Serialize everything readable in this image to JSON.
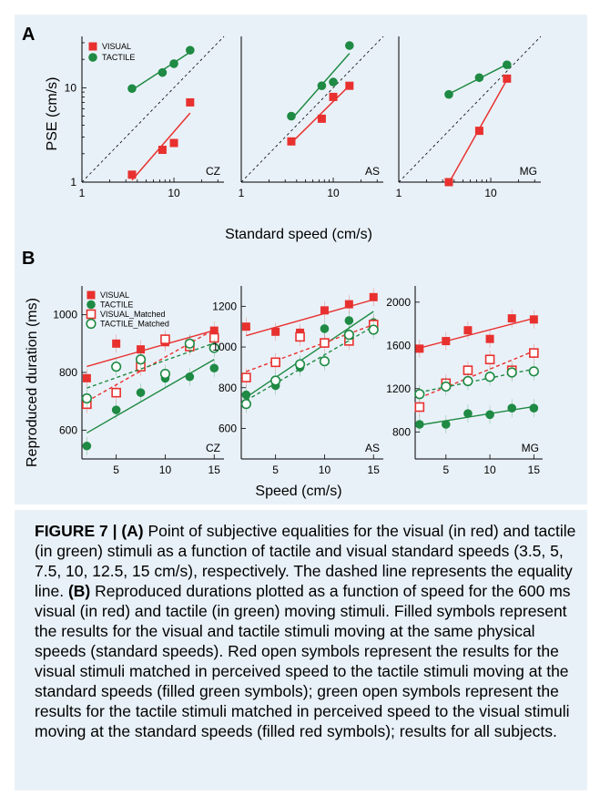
{
  "colors": {
    "visual": "#e8312f",
    "tactile": "#1e8a43",
    "background": "#e9f1f8"
  },
  "panel_a": {
    "letter": "A",
    "ylabel": "PSE (cm/s)",
    "xlabel": "Standard speed (cm/s)",
    "legend": [
      "VISUAL",
      "TACTILE"
    ],
    "x_ticks": [
      "1",
      "10"
    ],
    "y_ticks": [
      "1",
      "10"
    ]
  },
  "panel_b": {
    "letter": "B",
    "ylabel": "Reproduced duration (ms)",
    "xlabel": "Speed (cm/s)",
    "legend": [
      "VISUAL",
      "TACTILE",
      "VISUAL_Matched",
      "TACTILE_Matched"
    ],
    "x_ticks": [
      "5",
      "10",
      "15"
    ]
  },
  "caption": {
    "label": "FIGURE 7 |",
    "a_tag": "(A)",
    "a_text": " Point of subjective equalities for the visual (in red) and tactile (in green) stimuli as a function of tactile and visual standard speeds (3.5, 5, 7.5, 10, 12.5, 15 cm/s), respectively. The dashed line represents the equality line. ",
    "b_tag": "(B)",
    "b_text": " Reproduced durations plotted as a function of speed for the 600 ms visual (in red) and tactile (in green) moving stimuli. Filled symbols represent the results for the visual and tactile stimuli moving at the same physical speeds (standard speeds). Red open symbols represent the results for the visual stimuli matched in perceived speed to the tactile stimuli moving at the standard speeds (filled green symbols); green open symbols represent the results for the tactile stimuli matched in perceived speed to the visual stimuli moving at the standard speeds (filled red symbols); results for all subjects."
  },
  "chart_data": [
    {
      "type": "scatter",
      "panel": "A",
      "subject": "CZ",
      "scale": "log-log",
      "xlim": [
        1,
        35
      ],
      "ylim": [
        1,
        35
      ],
      "equality_line": true,
      "series": [
        {
          "name": "VISUAL",
          "x": [
            3.5,
            7.5,
            10,
            15
          ],
          "y": [
            1.2,
            2.2,
            2.6,
            7.0
          ]
        },
        {
          "name": "TACTILE",
          "x": [
            3.5,
            7.5,
            10,
            15
          ],
          "y": [
            9.8,
            14.5,
            18.0,
            25.0
          ]
        }
      ]
    },
    {
      "type": "scatter",
      "panel": "A",
      "subject": "AS",
      "scale": "log-log",
      "xlim": [
        1,
        35
      ],
      "ylim": [
        1,
        35
      ],
      "equality_line": true,
      "series": [
        {
          "name": "VISUAL",
          "x": [
            3.5,
            7.5,
            10,
            15
          ],
          "y": [
            2.7,
            4.7,
            8.0,
            10.5
          ]
        },
        {
          "name": "TACTILE",
          "x": [
            3.5,
            7.5,
            10,
            15
          ],
          "y": [
            5.0,
            10.5,
            11.5,
            28.0
          ]
        }
      ]
    },
    {
      "type": "scatter",
      "panel": "A",
      "subject": "MG",
      "scale": "log-log",
      "xlim": [
        1,
        35
      ],
      "ylim": [
        1,
        35
      ],
      "equality_line": true,
      "series": [
        {
          "name": "VISUAL",
          "x": [
            3.5,
            7.5,
            15
          ],
          "y": [
            1.0,
            3.5,
            12.5
          ]
        },
        {
          "name": "TACTILE",
          "x": [
            3.5,
            7.5,
            15
          ],
          "y": [
            8.5,
            12.8,
            17.5
          ]
        }
      ]
    },
    {
      "type": "scatter",
      "panel": "B",
      "subject": "CZ",
      "xlim": [
        1.5,
        16
      ],
      "ylim": [
        500,
        1100
      ],
      "y_ticks": [
        600,
        800,
        1000
      ],
      "series": [
        {
          "name": "VISUAL",
          "x": [
            2,
            5,
            7.5,
            10,
            12.5,
            15
          ],
          "y": [
            780,
            900,
            880,
            905,
            900,
            945
          ]
        },
        {
          "name": "TACTILE",
          "x": [
            2,
            5,
            7.5,
            10,
            12.5,
            15
          ],
          "y": [
            545,
            670,
            730,
            780,
            785,
            815
          ]
        },
        {
          "name": "VISUAL_Matched",
          "x": [
            2,
            5,
            7.5,
            10,
            12.5,
            15
          ],
          "y": [
            690,
            730,
            820,
            915,
            890,
            920
          ]
        },
        {
          "name": "TACTILE_Matched",
          "x": [
            2,
            5,
            7.5,
            10,
            12.5,
            15
          ],
          "y": [
            710,
            820,
            845,
            795,
            900,
            885
          ]
        }
      ]
    },
    {
      "type": "scatter",
      "panel": "B",
      "subject": "AS",
      "xlim": [
        1.5,
        16
      ],
      "ylim": [
        450,
        1300
      ],
      "y_ticks": [
        600,
        800,
        1000,
        1200
      ],
      "series": [
        {
          "name": "VISUAL",
          "x": [
            2,
            5,
            7.5,
            10,
            12.5,
            15
          ],
          "y": [
            1100,
            1075,
            1070,
            1180,
            1210,
            1245
          ]
        },
        {
          "name": "TACTILE",
          "x": [
            2,
            5,
            7.5,
            10,
            12.5,
            15
          ],
          "y": [
            765,
            810,
            900,
            1090,
            1130,
            1120
          ]
        },
        {
          "name": "VISUAL_Matched",
          "x": [
            2,
            5,
            7.5,
            10,
            12.5,
            15
          ],
          "y": [
            850,
            925,
            1050,
            1020,
            1030,
            1110
          ]
        },
        {
          "name": "TACTILE_Matched",
          "x": [
            2,
            5,
            7.5,
            10,
            12.5,
            15
          ],
          "y": [
            720,
            835,
            915,
            930,
            1060,
            1085
          ]
        }
      ]
    },
    {
      "type": "scatter",
      "panel": "B",
      "subject": "MG",
      "xlim": [
        1.5,
        16
      ],
      "ylim": [
        550,
        2150
      ],
      "y_ticks": [
        800,
        1200,
        1600,
        2000
      ],
      "series": [
        {
          "name": "VISUAL",
          "x": [
            2,
            5,
            7.5,
            10,
            12.5,
            15
          ],
          "y": [
            1570,
            1640,
            1740,
            1660,
            1850,
            1840
          ]
        },
        {
          "name": "TACTILE",
          "x": [
            2,
            5,
            7.5,
            10,
            12.5,
            15
          ],
          "y": [
            870,
            870,
            970,
            960,
            1020,
            1020
          ]
        },
        {
          "name": "VISUAL_Matched",
          "x": [
            2,
            5,
            7.5,
            10,
            12.5,
            15
          ],
          "y": [
            1030,
            1250,
            1370,
            1470,
            1370,
            1530
          ]
        },
        {
          "name": "TACTILE_Matched",
          "x": [
            2,
            5,
            7.5,
            10,
            12.5,
            15
          ],
          "y": [
            1150,
            1220,
            1270,
            1310,
            1350,
            1360
          ]
        }
      ]
    }
  ]
}
